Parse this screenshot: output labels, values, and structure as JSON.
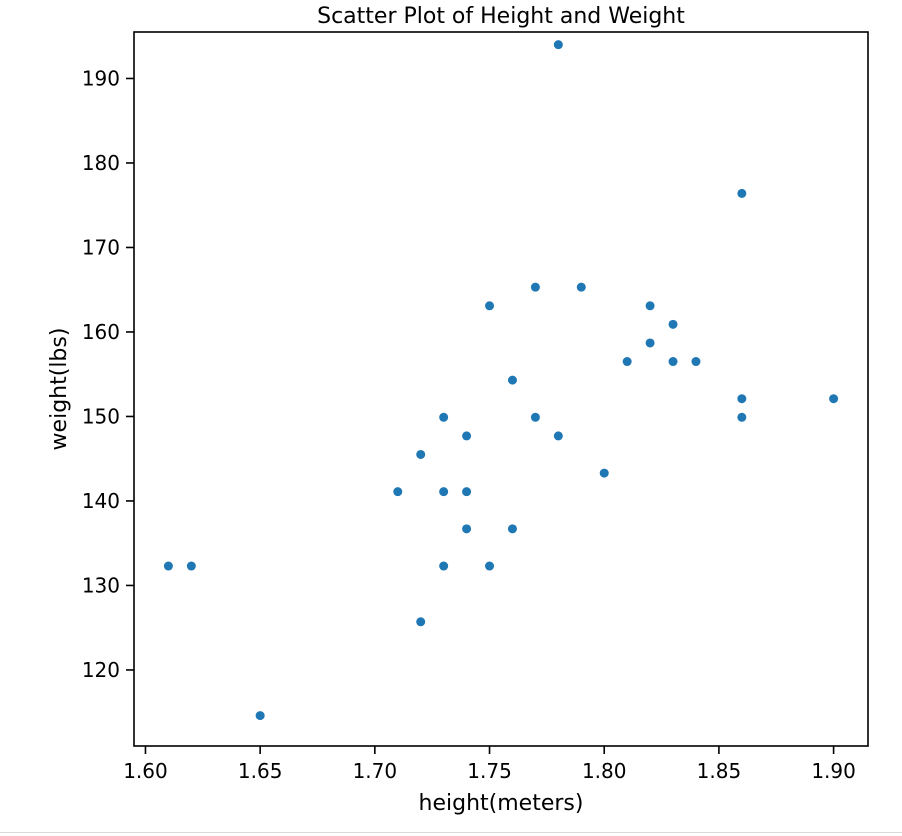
{
  "chart_data": {
    "type": "scatter",
    "title": "Scatter Plot of Height and Weight",
    "xlabel": "height(meters)",
    "ylabel": "weight(lbs)",
    "xlim": [
      1.595,
      1.915
    ],
    "ylim": [
      111,
      195.5
    ],
    "xticks": [
      1.6,
      1.65,
      1.7,
      1.75,
      1.8,
      1.85,
      1.9
    ],
    "xtick_labels": [
      "1.60",
      "1.65",
      "1.70",
      "1.75",
      "1.80",
      "1.85",
      "1.90"
    ],
    "yticks": [
      120,
      130,
      140,
      150,
      160,
      170,
      180,
      190
    ],
    "ytick_labels": [
      "120",
      "130",
      "140",
      "150",
      "160",
      "170",
      "180",
      "190"
    ],
    "grid": false,
    "point_color": "#1f77b4",
    "points": [
      {
        "x": 1.61,
        "y": 132.3
      },
      {
        "x": 1.62,
        "y": 132.3
      },
      {
        "x": 1.65,
        "y": 114.6
      },
      {
        "x": 1.71,
        "y": 141.1
      },
      {
        "x": 1.72,
        "y": 145.5
      },
      {
        "x": 1.72,
        "y": 125.7
      },
      {
        "x": 1.73,
        "y": 149.9
      },
      {
        "x": 1.73,
        "y": 141.1
      },
      {
        "x": 1.73,
        "y": 132.3
      },
      {
        "x": 1.74,
        "y": 147.7
      },
      {
        "x": 1.74,
        "y": 141.1
      },
      {
        "x": 1.74,
        "y": 136.7
      },
      {
        "x": 1.75,
        "y": 163.1
      },
      {
        "x": 1.75,
        "y": 132.3
      },
      {
        "x": 1.76,
        "y": 154.3
      },
      {
        "x": 1.76,
        "y": 136.7
      },
      {
        "x": 1.77,
        "y": 165.3
      },
      {
        "x": 1.77,
        "y": 149.9
      },
      {
        "x": 1.78,
        "y": 194.0
      },
      {
        "x": 1.78,
        "y": 147.7
      },
      {
        "x": 1.79,
        "y": 165.3
      },
      {
        "x": 1.8,
        "y": 143.3
      },
      {
        "x": 1.81,
        "y": 156.5
      },
      {
        "x": 1.82,
        "y": 163.1
      },
      {
        "x": 1.82,
        "y": 158.7
      },
      {
        "x": 1.83,
        "y": 160.9
      },
      {
        "x": 1.83,
        "y": 156.5
      },
      {
        "x": 1.84,
        "y": 156.5
      },
      {
        "x": 1.86,
        "y": 176.4
      },
      {
        "x": 1.86,
        "y": 152.1
      },
      {
        "x": 1.86,
        "y": 149.9
      },
      {
        "x": 1.9,
        "y": 152.1
      }
    ]
  }
}
